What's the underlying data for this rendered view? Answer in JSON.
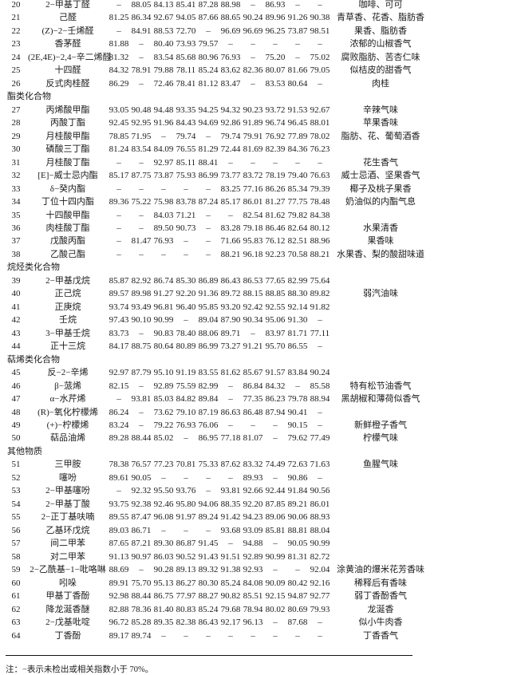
{
  "sections": [
    {
      "title": "",
      "rows": [
        {
          "no": "20",
          "name": "2−甲基丁醛",
          "vals": [
            "–",
            "88.05",
            "84.13",
            "85.41",
            "87.28",
            "88.98",
            "–",
            "86.93",
            "–",
            "–"
          ],
          "desc": "咖啡、可可"
        },
        {
          "no": "21",
          "name": "己醛",
          "vals": [
            "81.25",
            "86.34",
            "92.67",
            "94.05",
            "87.66",
            "88.65",
            "90.24",
            "89.96",
            "91.26",
            "90.38"
          ],
          "desc": "青草香、花香、脂肪香"
        },
        {
          "no": "22",
          "name": "(Z)−2−壬烯醛",
          "vals": [
            "–",
            "84.91",
            "88.53",
            "72.70",
            "–",
            "96.69",
            "96.69",
            "96.25",
            "73.87",
            "98.51"
          ],
          "desc": "果香、脂肪香"
        },
        {
          "no": "23",
          "name": "香茅醛",
          "vals": [
            "81.88",
            "–",
            "80.40",
            "73.93",
            "79.57",
            "–",
            "–",
            "–",
            "–",
            "–"
          ],
          "desc": "浓郁的山椒香气"
        },
        {
          "no": "24",
          "name": "(2E,4E)−2,4−辛二烯醛",
          "vals": [
            "81.32",
            "–",
            "83.54",
            "85.68",
            "80.96",
            "76.93",
            "–",
            "75.20",
            "–",
            "75.02"
          ],
          "desc": "腐败脂肪、苦杏仁味"
        },
        {
          "no": "25",
          "name": "十四醛",
          "vals": [
            "84.32",
            "78.91",
            "79.88",
            "78.11",
            "85.24",
            "83.62",
            "82.36",
            "80.07",
            "81.66",
            "79.05"
          ],
          "desc": "似桔皮的甜香气"
        },
        {
          "no": "26",
          "name": "反式肉桂醛",
          "vals": [
            "86.29",
            "–",
            "72.46",
            "78.41",
            "81.12",
            "83.47",
            "–",
            "83.53",
            "80.64",
            "–"
          ],
          "desc": "肉桂"
        }
      ]
    },
    {
      "title": "酯类化合物",
      "rows": [
        {
          "no": "27",
          "name": "丙烯酸甲酯",
          "vals": [
            "93.05",
            "90.48",
            "94.48",
            "93.35",
            "94.25",
            "94.32",
            "90.23",
            "93.72",
            "91.53",
            "92.67"
          ],
          "desc": "辛辣气味"
        },
        {
          "no": "28",
          "name": "丙酸丁酯",
          "vals": [
            "92.45",
            "92.95",
            "91.96",
            "84.43",
            "94.69",
            "92.86",
            "91.89",
            "96.74",
            "96.45",
            "88.01"
          ],
          "desc": "苹果香味"
        },
        {
          "no": "29",
          "name": "月桂酸甲酯",
          "vals": [
            "78.85",
            "71.95",
            "–",
            "79.74",
            "–",
            "79.74",
            "79.91",
            "76.92",
            "77.89",
            "78.02"
          ],
          "desc": "脂肪、花、葡萄酒香"
        },
        {
          "no": "30",
          "name": "磷酸三丁酯",
          "vals": [
            "81.24",
            "83.54",
            "84.09",
            "76.55",
            "81.29",
            "72.44",
            "81.69",
            "82.39",
            "84.36",
            "76.23"
          ],
          "desc": ""
        },
        {
          "no": "31",
          "name": "月桂酸丁酯",
          "vals": [
            "–",
            "–",
            "92.97",
            "85.11",
            "88.41",
            "–",
            "–",
            "–",
            "–",
            "–"
          ],
          "desc": "花生香气"
        },
        {
          "no": "32",
          "name": "[E]−威士忌内酯",
          "vals": [
            "85.17",
            "87.75",
            "73.87",
            "75.93",
            "86.99",
            "73.77",
            "83.72",
            "78.19",
            "79.40",
            "76.63"
          ],
          "desc": "威士忌酒、坚果香气"
        },
        {
          "no": "33",
          "name": "δ−癸内酯",
          "vals": [
            "–",
            "–",
            "–",
            "–",
            "–",
            "83.25",
            "77.16",
            "86.26",
            "85.34",
            "79.39"
          ],
          "desc": "椰子及桃子果香"
        },
        {
          "no": "34",
          "name": "丁位十四内酯",
          "vals": [
            "89.36",
            "75.22",
            "75.98",
            "83.78",
            "87.24",
            "85.17",
            "86.01",
            "81.27",
            "77.75",
            "78.48"
          ],
          "desc": "奶油似的内酯气息"
        },
        {
          "no": "35",
          "name": "十四酸甲酯",
          "vals": [
            "–",
            "–",
            "84.03",
            "71.21",
            "–",
            "–",
            "82.54",
            "81.62",
            "79.82",
            "84.38"
          ],
          "desc": ""
        },
        {
          "no": "36",
          "name": "肉桂酸丁酯",
          "vals": [
            "–",
            "–",
            "89.50",
            "90.73",
            "–",
            "83.28",
            "79.18",
            "86.46",
            "82.64",
            "80.12"
          ],
          "desc": "水果清香"
        },
        {
          "no": "37",
          "name": "戊酸丙酯",
          "vals": [
            "–",
            "81.47",
            "76.93",
            "–",
            "–",
            "71.66",
            "95.83",
            "76.12",
            "82.51",
            "88.96"
          ],
          "desc": "果香味"
        },
        {
          "no": "38",
          "name": "乙酸己酯",
          "vals": [
            "–",
            "–",
            "–",
            "–",
            "–",
            "88.21",
            "96.18",
            "92.23",
            "70.58",
            "88.21"
          ],
          "desc": "水果香、梨的酸甜味道"
        }
      ]
    },
    {
      "title": "烷烃类化合物",
      "rows": [
        {
          "no": "39",
          "name": "2−甲基戊烷",
          "vals": [
            "85.87",
            "82.92",
            "86.74",
            "85.30",
            "86.89",
            "86.43",
            "86.53",
            "77.65",
            "82.99",
            "75.64"
          ],
          "desc": ""
        },
        {
          "no": "40",
          "name": "正己烷",
          "vals": [
            "89.57",
            "89.98",
            "91.27",
            "92.20",
            "91.36",
            "89.72",
            "88.15",
            "88.85",
            "88.30",
            "89.82"
          ],
          "desc": "弱汽油味"
        },
        {
          "no": "41",
          "name": "正庚烷",
          "vals": [
            "93.74",
            "93.49",
            "96.81",
            "96.40",
            "95.85",
            "93.20",
            "92.42",
            "92.55",
            "92.14",
            "91.82"
          ],
          "desc": ""
        },
        {
          "no": "42",
          "name": "壬烷",
          "vals": [
            "97.43",
            "90.10",
            "90.99",
            "–",
            "89.04",
            "87.90",
            "90.34",
            "95.06",
            "91.30",
            "–"
          ],
          "desc": ""
        },
        {
          "no": "43",
          "name": "3−甲基壬烷",
          "vals": [
            "83.73",
            "–",
            "90.83",
            "78.40",
            "88.06",
            "89.71",
            "–",
            "83.97",
            "81.71",
            "77.11"
          ],
          "desc": ""
        },
        {
          "no": "44",
          "name": "正十三烷",
          "vals": [
            "84.17",
            "88.75",
            "80.64",
            "80.89",
            "86.99",
            "73.27",
            "91.21",
            "95.70",
            "86.55",
            "–"
          ],
          "desc": ""
        }
      ]
    },
    {
      "title": "萜烯类化合物",
      "rows": [
        {
          "no": "45",
          "name": "反−2−辛烯",
          "vals": [
            "92.97",
            "87.79",
            "95.10",
            "91.19",
            "83.55",
            "81.62",
            "85.67",
            "91.57",
            "83.84",
            "90.24"
          ],
          "desc": ""
        },
        {
          "no": "46",
          "name": "β−蒎烯",
          "vals": [
            "82.15",
            "–",
            "92.89",
            "75.59",
            "82.99",
            "–",
            "86.84",
            "84.32",
            "–",
            "85.58"
          ],
          "desc": "特有松节油香气"
        },
        {
          "no": "47",
          "name": "α−水芹烯",
          "vals": [
            "–",
            "93.81",
            "85.03",
            "84.82",
            "89.84",
            "–",
            "77.35",
            "86.23",
            "79.78",
            "88.94"
          ],
          "desc": "黑胡椒和薄荷似香气"
        },
        {
          "no": "48",
          "name": "(R)−氧化柠檬烯",
          "vals": [
            "86.24",
            "–",
            "73.62",
            "79.10",
            "87.19",
            "86.63",
            "86.48",
            "87.94",
            "90.41",
            "–"
          ],
          "desc": ""
        },
        {
          "no": "49",
          "name": "(+)−柠檬烯",
          "vals": [
            "83.24",
            "–",
            "79.22",
            "76.93",
            "76.06",
            "–",
            "–",
            "–",
            "90.15",
            "–"
          ],
          "desc": "新鲜橙子香气"
        },
        {
          "no": "50",
          "name": "萜品油烯",
          "vals": [
            "89.28",
            "88.44",
            "85.02",
            "–",
            "86.95",
            "77.18",
            "81.07",
            "–",
            "79.62",
            "77.49"
          ],
          "desc": "柠檬气味"
        }
      ]
    },
    {
      "title": "其他物质",
      "rows": [
        {
          "no": "51",
          "name": "三甲胺",
          "vals": [
            "78.38",
            "76.57",
            "77.23",
            "70.81",
            "75.33",
            "87.62",
            "83.32",
            "74.49",
            "72.63",
            "71.63"
          ],
          "desc": "鱼腥气味"
        },
        {
          "no": "52",
          "name": "噻吩",
          "vals": [
            "89.61",
            "90.05",
            "–",
            "–",
            "–",
            "–",
            "89.93",
            "–",
            "90.86",
            "–"
          ],
          "desc": ""
        },
        {
          "no": "53",
          "name": "2−甲基噻吩",
          "vals": [
            "–",
            "92.32",
            "95.50",
            "93.76",
            "–",
            "93.81",
            "92.66",
            "92.44",
            "91.84",
            "90.56"
          ],
          "desc": ""
        },
        {
          "no": "54",
          "name": "2−甲基丁酸",
          "vals": [
            "93.75",
            "92.38",
            "92.46",
            "95.80",
            "94.06",
            "88.35",
            "92.20",
            "87.85",
            "89.21",
            "86.01"
          ],
          "desc": ""
        },
        {
          "no": "55",
          "name": "2−正丁基呋喃",
          "vals": [
            "89.55",
            "87.47",
            "96.08",
            "91.97",
            "89.24",
            "91.42",
            "94.23",
            "89.06",
            "90.06",
            "88.93"
          ],
          "desc": ""
        },
        {
          "no": "56",
          "name": "乙基环戊烷",
          "vals": [
            "89.03",
            "86.71",
            "–",
            "–",
            "–",
            "93.68",
            "93.09",
            "85.81",
            "88.81",
            "88.04"
          ],
          "desc": ""
        },
        {
          "no": "57",
          "name": "间二甲苯",
          "vals": [
            "87.65",
            "87.21",
            "89.30",
            "86.87",
            "91.45",
            "–",
            "94.88",
            "–",
            "90.05",
            "90.99"
          ],
          "desc": ""
        },
        {
          "no": "58",
          "name": "对二甲苯",
          "vals": [
            "91.13",
            "90.97",
            "86.03",
            "90.52",
            "91.43",
            "91.51",
            "92.89",
            "90.99",
            "81.31",
            "82.72"
          ],
          "desc": ""
        },
        {
          "no": "59",
          "name": "2−乙酰基−1−吡咯啉",
          "vals": [
            "88.69",
            "–",
            "90.28",
            "89.13",
            "89.32",
            "91.38",
            "92.93",
            "–",
            "–",
            "92.04"
          ],
          "desc": "涂黄油的爆米花芳香味"
        },
        {
          "no": "60",
          "name": "吲哚",
          "vals": [
            "89.91",
            "75.70",
            "95.13",
            "86.27",
            "80.30",
            "85.24",
            "84.08",
            "90.09",
            "80.42",
            "92.16"
          ],
          "desc": "稀释后有香味"
        },
        {
          "no": "61",
          "name": "甲基丁香酚",
          "vals": [
            "92.98",
            "88.44",
            "86.75",
            "77.97",
            "88.27",
            "90.82",
            "85.51",
            "92.15",
            "94.87",
            "92.77"
          ],
          "desc": "弱丁香酚香气"
        },
        {
          "no": "62",
          "name": "降龙涎香醚",
          "vals": [
            "82.88",
            "78.36",
            "81.40",
            "80.83",
            "85.24",
            "79.68",
            "78.94",
            "80.02",
            "80.69",
            "79.93"
          ],
          "desc": "龙涎香"
        },
        {
          "no": "63",
          "name": "2−戊基吡啶",
          "vals": [
            "96.72",
            "85.28",
            "89.35",
            "82.38",
            "86.43",
            "92.17",
            "96.13",
            "–",
            "87.68",
            "–"
          ],
          "desc": "似小牛肉香"
        },
        {
          "no": "64",
          "name": "丁香酚",
          "vals": [
            "89.17",
            "89.74",
            "–",
            "–",
            "–",
            "–",
            "–",
            "–",
            "–",
            "–"
          ],
          "desc": "丁香香气"
        }
      ]
    }
  ],
  "note": "注：−表示未检出或相关指数小于 70%。"
}
